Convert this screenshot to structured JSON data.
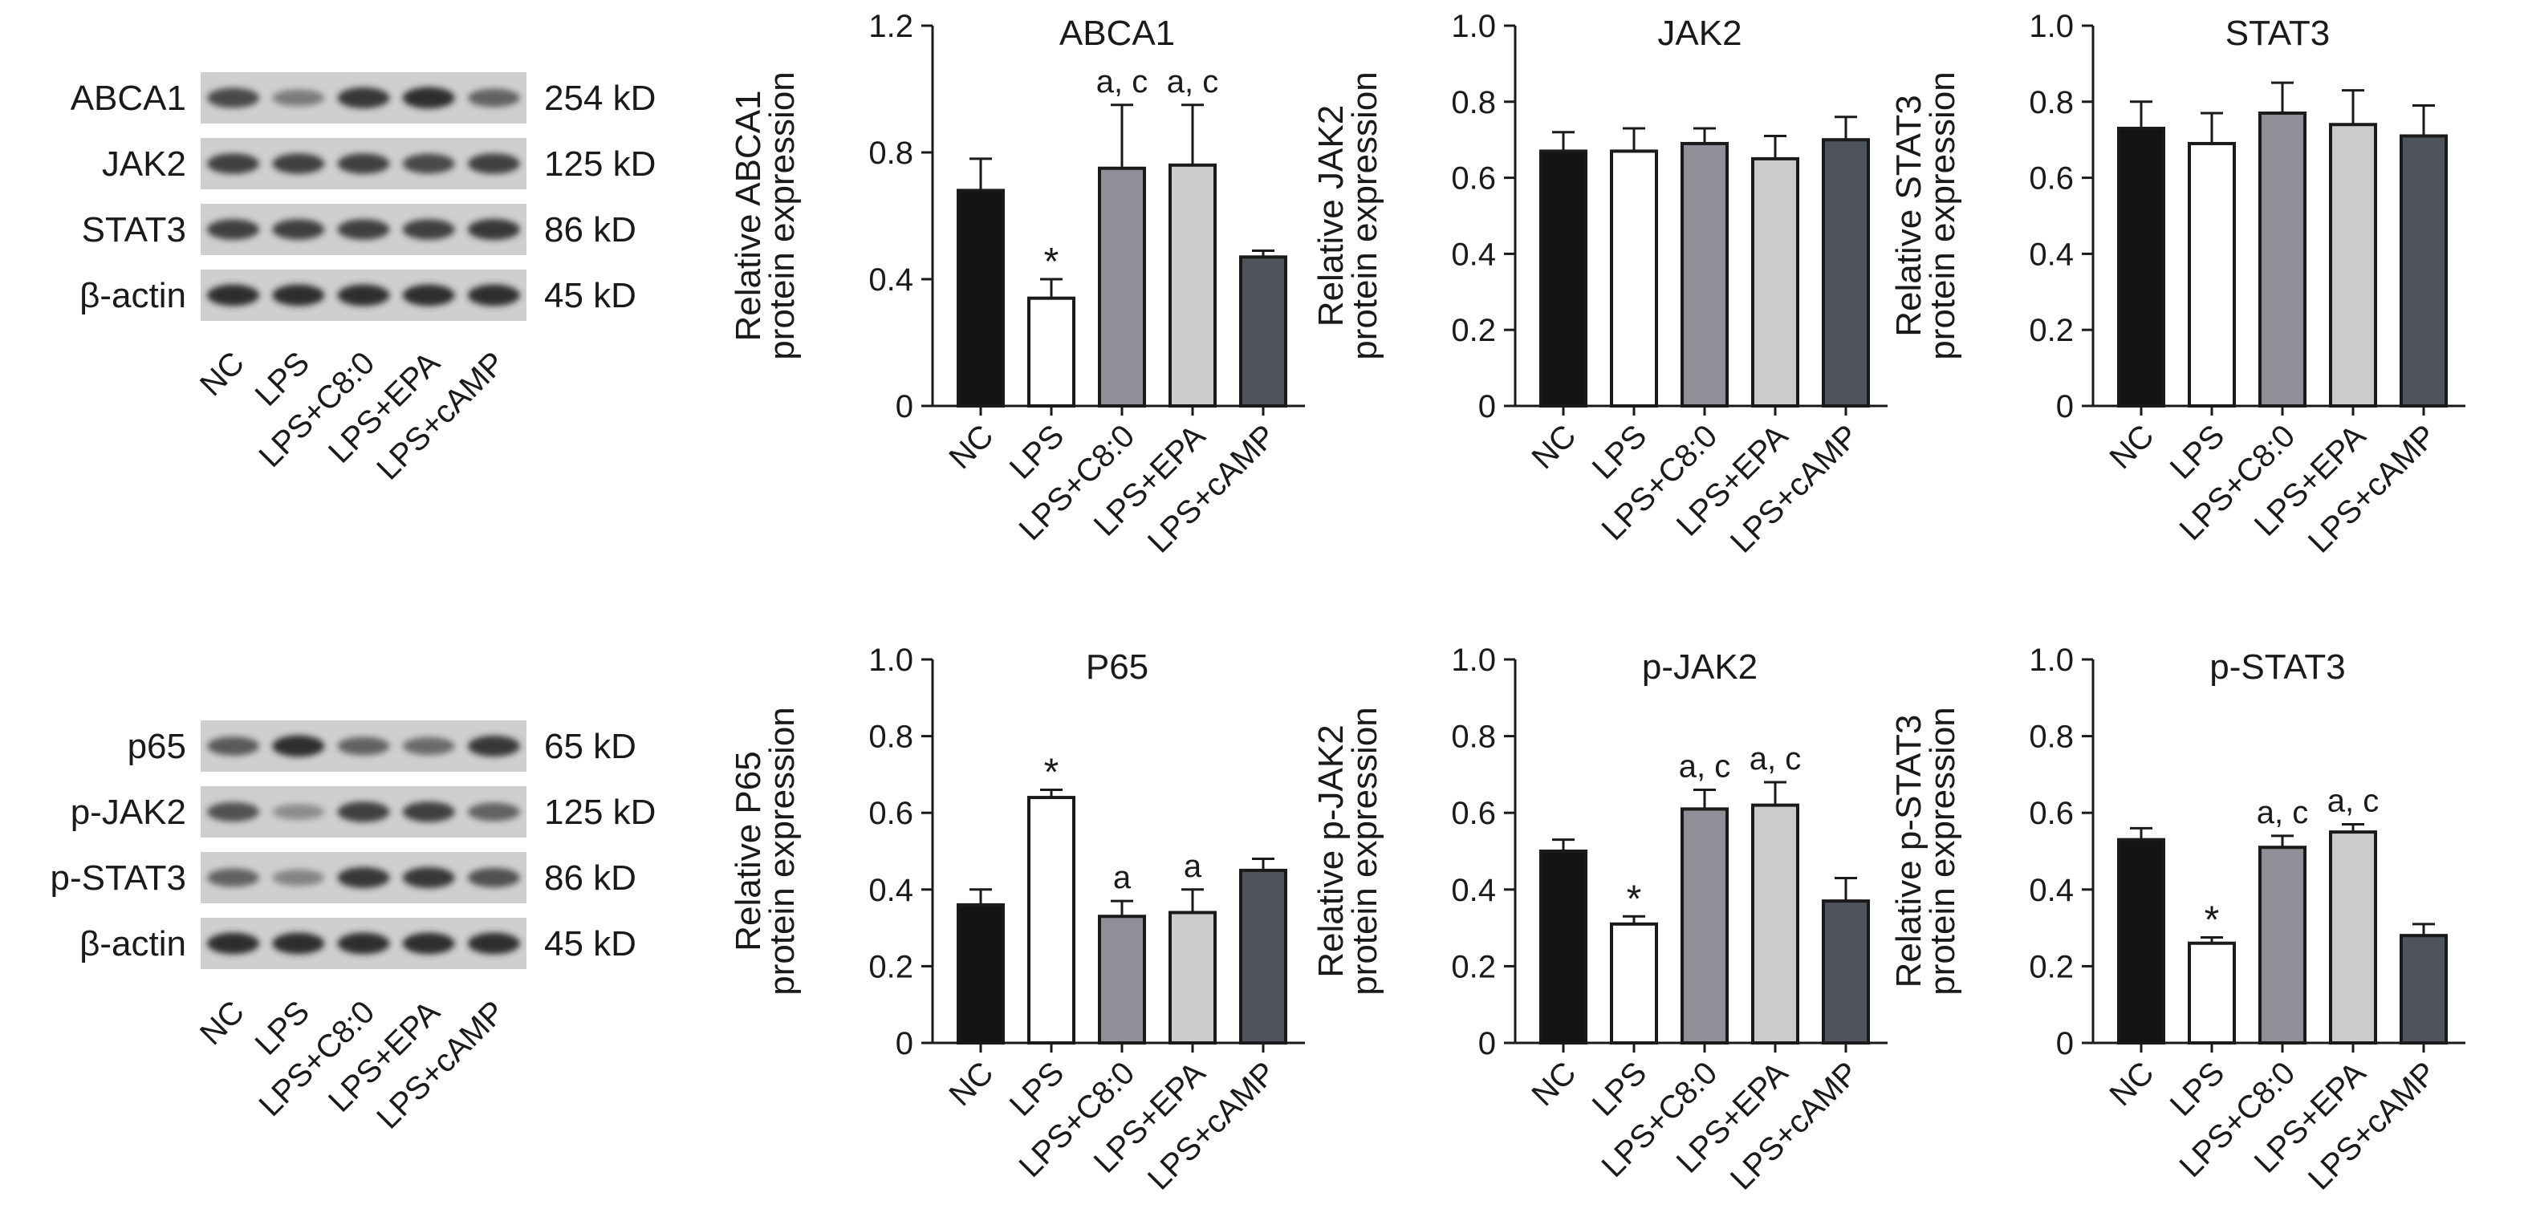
{
  "western_blots": [
    {
      "panel": "top",
      "lanes": [
        "NC",
        "LPS",
        "LPS+C8:0",
        "LPS+EPA",
        "LPS+cAMP"
      ],
      "rows": [
        {
          "protein": "ABCA1",
          "size": "254 kD",
          "intensity": [
            0.75,
            0.45,
            0.85,
            0.9,
            0.6
          ]
        },
        {
          "protein": "JAK2",
          "size": "125 kD",
          "intensity": [
            0.8,
            0.8,
            0.8,
            0.75,
            0.8
          ]
        },
        {
          "protein": "STAT3",
          "size": "86 kD",
          "intensity": [
            0.8,
            0.8,
            0.8,
            0.8,
            0.85
          ]
        },
        {
          "protein": "β-actin",
          "size": "45 kD",
          "intensity": [
            0.9,
            0.9,
            0.9,
            0.9,
            0.9
          ]
        }
      ]
    },
    {
      "panel": "bottom",
      "lanes": [
        "NC",
        "LPS",
        "LPS+C8:0",
        "LPS+EPA",
        "LPS+cAMP"
      ],
      "rows": [
        {
          "protein": "p65",
          "size": "65 kD",
          "intensity": [
            0.65,
            0.9,
            0.6,
            0.55,
            0.85
          ]
        },
        {
          "protein": "p-JAK2",
          "size": "125 kD",
          "intensity": [
            0.7,
            0.35,
            0.8,
            0.8,
            0.6
          ]
        },
        {
          "protein": "p-STAT3",
          "size": "86 kD",
          "intensity": [
            0.6,
            0.4,
            0.85,
            0.85,
            0.7
          ]
        },
        {
          "protein": "β-actin",
          "size": "45 kD",
          "intensity": [
            0.9,
            0.9,
            0.9,
            0.9,
            0.9
          ]
        }
      ]
    }
  ],
  "bar_colors": [
    "#141414",
    "#ffffff",
    "#8e8f97",
    "#cccccc",
    "#4f545c"
  ],
  "chart_data": [
    {
      "type": "bar",
      "title": "ABCA1",
      "ylabel": [
        "Relative ABCA1",
        "protein expression"
      ],
      "categories": [
        "NC",
        "LPS",
        "LPS+C8:0",
        "LPS+EPA",
        "LPS+cAMP"
      ],
      "values": [
        0.68,
        0.34,
        0.75,
        0.76,
        0.47
      ],
      "errors": [
        0.1,
        0.06,
        0.2,
        0.19,
        0.02
      ],
      "annotations": [
        "",
        "*",
        "a, c",
        "a, c",
        ""
      ],
      "ylim": [
        0,
        1.2
      ],
      "yticks": [
        0,
        0.4,
        0.8,
        1.2
      ],
      "ytick_labels": [
        "0",
        "0.4",
        "0.8",
        "1.2"
      ]
    },
    {
      "type": "bar",
      "title": "JAK2",
      "ylabel": [
        "Relative JAK2",
        "protein expression"
      ],
      "categories": [
        "NC",
        "LPS",
        "LPS+C8:0",
        "LPS+EPA",
        "LPS+cAMP"
      ],
      "values": [
        0.67,
        0.67,
        0.69,
        0.65,
        0.7
      ],
      "errors": [
        0.05,
        0.06,
        0.04,
        0.06,
        0.06
      ],
      "annotations": [
        "",
        "",
        "",
        "",
        ""
      ],
      "ylim": [
        0,
        1.0
      ],
      "yticks": [
        0,
        0.2,
        0.4,
        0.6,
        0.8,
        1.0
      ],
      "ytick_labels": [
        "0",
        "0.2",
        "0.4",
        "0.6",
        "0.8",
        "1.0"
      ]
    },
    {
      "type": "bar",
      "title": "STAT3",
      "ylabel": [
        "Relative STAT3",
        "protein expression"
      ],
      "categories": [
        "NC",
        "LPS",
        "LPS+C8:0",
        "LPS+EPA",
        "LPS+cAMP"
      ],
      "values": [
        0.73,
        0.69,
        0.77,
        0.74,
        0.71
      ],
      "errors": [
        0.07,
        0.08,
        0.08,
        0.09,
        0.08
      ],
      "annotations": [
        "",
        "",
        "",
        "",
        ""
      ],
      "ylim": [
        0,
        1.0
      ],
      "yticks": [
        0,
        0.2,
        0.4,
        0.6,
        0.8,
        1.0
      ],
      "ytick_labels": [
        "0",
        "0.2",
        "0.4",
        "0.6",
        "0.8",
        "1.0"
      ]
    },
    {
      "type": "bar",
      "title": "P65",
      "ylabel": [
        "Relative P65",
        "protein expression"
      ],
      "categories": [
        "NC",
        "LPS",
        "LPS+C8:0",
        "LPS+EPA",
        "LPS+cAMP"
      ],
      "values": [
        0.36,
        0.64,
        0.33,
        0.34,
        0.45
      ],
      "errors": [
        0.04,
        0.02,
        0.04,
        0.06,
        0.03
      ],
      "annotations": [
        "",
        "*",
        "a",
        "a",
        ""
      ],
      "ylim": [
        0,
        1.0
      ],
      "yticks": [
        0,
        0.2,
        0.4,
        0.6,
        0.8,
        1.0
      ],
      "ytick_labels": [
        "0",
        "0.2",
        "0.4",
        "0.6",
        "0.8",
        "1.0"
      ]
    },
    {
      "type": "bar",
      "title": "p-JAK2",
      "ylabel": [
        "Relative p-JAK2",
        "protein expression"
      ],
      "categories": [
        "NC",
        "LPS",
        "LPS+C8:0",
        "LPS+EPA",
        "LPS+cAMP"
      ],
      "values": [
        0.5,
        0.31,
        0.61,
        0.62,
        0.37
      ],
      "errors": [
        0.03,
        0.02,
        0.05,
        0.06,
        0.06
      ],
      "annotations": [
        "",
        "*",
        "a, c",
        "a, c",
        ""
      ],
      "ylim": [
        0,
        1.0
      ],
      "yticks": [
        0,
        0.2,
        0.4,
        0.6,
        0.8,
        1.0
      ],
      "ytick_labels": [
        "0",
        "0.2",
        "0.4",
        "0.6",
        "0.8",
        "1.0"
      ]
    },
    {
      "type": "bar",
      "title": "p-STAT3",
      "ylabel": [
        "Relative p-STAT3",
        "protein expression"
      ],
      "categories": [
        "NC",
        "LPS",
        "LPS+C8:0",
        "LPS+EPA",
        "LPS+cAMP"
      ],
      "values": [
        0.53,
        0.26,
        0.51,
        0.55,
        0.28
      ],
      "errors": [
        0.03,
        0.015,
        0.03,
        0.02,
        0.03
      ],
      "annotations": [
        "",
        "*",
        "a, c",
        "a, c",
        ""
      ],
      "ylim": [
        0,
        1.0
      ],
      "yticks": [
        0,
        0.2,
        0.4,
        0.6,
        0.8,
        1.0
      ],
      "ytick_labels": [
        "0",
        "0.2",
        "0.4",
        "0.6",
        "0.8",
        "1.0"
      ]
    }
  ]
}
